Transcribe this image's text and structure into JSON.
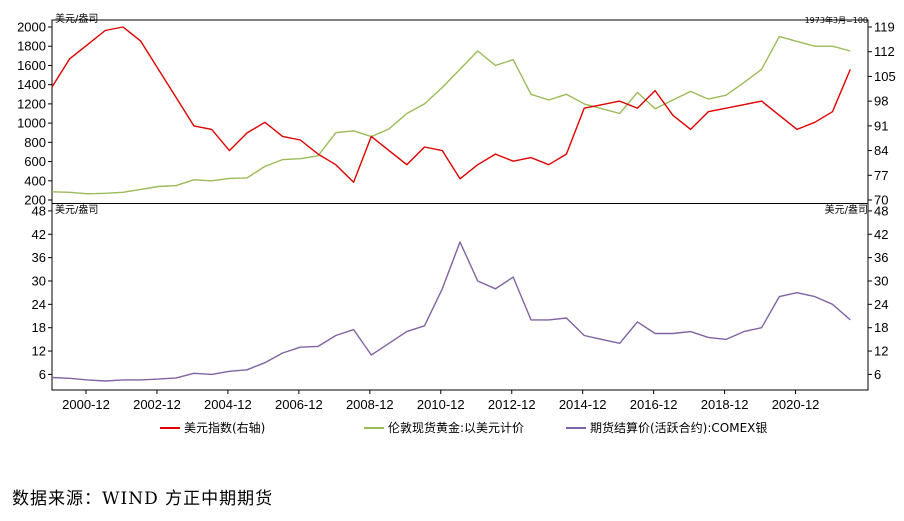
{
  "chart_data": [
    {
      "type": "line",
      "panel": "top",
      "left_unit": "美元/盎司",
      "right_unit": "1973年3月=100",
      "x": [
        "2000-01",
        "2000-07",
        "2001-01",
        "2001-07",
        "2002-01",
        "2002-07",
        "2003-01",
        "2003-07",
        "2004-01",
        "2004-07",
        "2005-01",
        "2005-07",
        "2006-01",
        "2006-07",
        "2007-01",
        "2007-07",
        "2008-01",
        "2008-07",
        "2009-01",
        "2009-07",
        "2010-01",
        "2010-07",
        "2011-01",
        "2011-07",
        "2012-01",
        "2012-07",
        "2013-01",
        "2013-07",
        "2014-01",
        "2014-07",
        "2015-01",
        "2015-07",
        "2016-01",
        "2016-07",
        "2017-01",
        "2017-07",
        "2018-01",
        "2018-07",
        "2019-01",
        "2019-07",
        "2020-01",
        "2020-07",
        "2021-01",
        "2021-07",
        "2022-01",
        "2022-07"
      ],
      "xlim": [
        "2000-01",
        "2022-12"
      ],
      "x_tick_labels": [
        "2000-12",
        "2002-12",
        "2004-12",
        "2006-12",
        "2008-12",
        "2010-12",
        "2012-12",
        "2014-12",
        "2016-12",
        "2018-12",
        "2020-12"
      ],
      "left_ylim": [
        200,
        2000
      ],
      "left_ticks": [
        "200",
        "400",
        "600",
        "800",
        "1000",
        "1200",
        "1400",
        "1600",
        "1800",
        "2000"
      ],
      "right_ylim": [
        70,
        119
      ],
      "right_ticks": [
        "70",
        "77",
        "84",
        "91",
        "98",
        "105",
        "112",
        "119"
      ],
      "series": [
        {
          "name": "美元指数(右轴)",
          "axis": "right",
          "color": "#e00000",
          "values": [
            102,
            110,
            114,
            118,
            119,
            115,
            107,
            99,
            91,
            90,
            84,
            89,
            92,
            88,
            87,
            83,
            80,
            75,
            88,
            84,
            80,
            85,
            84,
            76,
            80,
            83,
            81,
            82,
            80,
            83,
            96,
            97,
            98,
            96,
            101,
            94,
            90,
            95,
            96,
            97,
            98,
            94,
            90,
            92,
            95,
            107
          ]
        },
        {
          "name": "伦敦现货黄金:以美元计价",
          "axis": "left",
          "color": "#9bbb59",
          "values": [
            285,
            280,
            265,
            270,
            280,
            310,
            340,
            350,
            410,
            400,
            425,
            430,
            550,
            620,
            630,
            660,
            900,
            920,
            860,
            940,
            1100,
            1200,
            1370,
            1560,
            1750,
            1600,
            1660,
            1300,
            1240,
            1300,
            1200,
            1150,
            1100,
            1320,
            1150,
            1240,
            1330,
            1250,
            1290,
            1420,
            1560,
            1900,
            1850,
            1800,
            1800,
            1750
          ]
        }
      ]
    },
    {
      "type": "line",
      "panel": "bottom",
      "left_unit": "美元/盎司",
      "right_unit": "美元/盎司",
      "x": [
        "2000-01",
        "2000-07",
        "2001-01",
        "2001-07",
        "2002-01",
        "2002-07",
        "2003-01",
        "2003-07",
        "2004-01",
        "2004-07",
        "2005-01",
        "2005-07",
        "2006-01",
        "2006-07",
        "2007-01",
        "2007-07",
        "2008-01",
        "2008-07",
        "2009-01",
        "2009-07",
        "2010-01",
        "2010-07",
        "2011-01",
        "2011-07",
        "2012-01",
        "2012-07",
        "2013-01",
        "2013-07",
        "2014-01",
        "2014-07",
        "2015-01",
        "2015-07",
        "2016-01",
        "2016-07",
        "2017-01",
        "2017-07",
        "2018-01",
        "2018-07",
        "2019-01",
        "2019-07",
        "2020-01",
        "2020-07",
        "2021-01",
        "2021-07",
        "2022-01",
        "2022-07"
      ],
      "xlim": [
        "2000-01",
        "2022-12"
      ],
      "x_tick_labels": [
        "2000-12",
        "2002-12",
        "2004-12",
        "2006-12",
        "2008-12",
        "2010-12",
        "2012-12",
        "2014-12",
        "2016-12",
        "2018-12",
        "2020-12"
      ],
      "left_ylim": [
        2,
        49
      ],
      "left_ticks": [
        "6",
        "12",
        "18",
        "24",
        "30",
        "36",
        "42",
        "48"
      ],
      "right_ticks": [
        "6",
        "12",
        "18",
        "24",
        "30",
        "36",
        "42",
        "48"
      ],
      "series": [
        {
          "name": "期货结算价(活跃合约):COMEX银",
          "axis": "left",
          "color": "#8064a2",
          "values": [
            5.2,
            5.0,
            4.6,
            4.3,
            4.6,
            4.6,
            4.8,
            5.1,
            6.3,
            6.0,
            6.8,
            7.2,
            9.0,
            11.5,
            13.0,
            13.2,
            16.0,
            17.5,
            11.0,
            14.0,
            17.0,
            18.5,
            28.0,
            40.0,
            30.0,
            28.0,
            31.0,
            20.0,
            20.0,
            20.5,
            16.0,
            15.0,
            14.0,
            19.5,
            16.5,
            16.5,
            17.0,
            15.5,
            15.0,
            17.0,
            18.0,
            26.0,
            27.0,
            26.0,
            24.0,
            20.0
          ]
        }
      ]
    }
  ],
  "source": "数据来源：WIND  方正中期期货"
}
